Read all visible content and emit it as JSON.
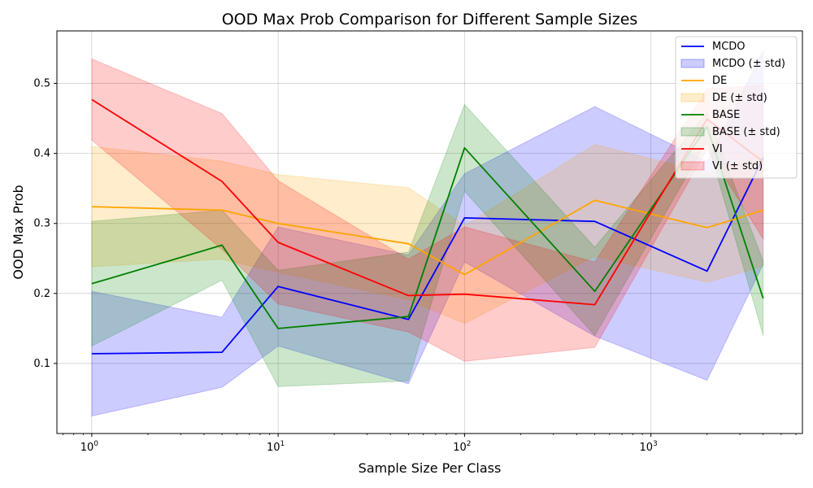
{
  "chart_data": {
    "type": "line",
    "title": "OOD Max Prob Comparison for Different Sample Sizes",
    "xlabel": "Sample Size Per Class",
    "ylabel": "OOD Max Prob",
    "xscale": "log",
    "xlim": [
      0.65,
      6500
    ],
    "ylim": [
      0.0,
      0.575
    ],
    "x": [
      1,
      5,
      10,
      50,
      100,
      500,
      2000,
      4000
    ],
    "x_ticks": [
      {
        "value": 1,
        "base": "10",
        "exp": "0"
      },
      {
        "value": 10,
        "base": "10",
        "exp": "1"
      },
      {
        "value": 100,
        "base": "10",
        "exp": "2"
      },
      {
        "value": 1000,
        "base": "10",
        "exp": "3"
      }
    ],
    "y_ticks": [
      0.1,
      0.2,
      0.3,
      0.4,
      0.5
    ],
    "y_tick_labels": [
      "0.1",
      "0.2",
      "0.3",
      "0.4",
      "0.5"
    ],
    "grid": true,
    "legend_position": "top-right",
    "series": [
      {
        "name": "MCDO",
        "band_name": "MCDO (± std)",
        "color": "#0000ff",
        "values": [
          0.114,
          0.116,
          0.21,
          0.163,
          0.308,
          0.303,
          0.232,
          0.394
        ],
        "std": [
          0.089,
          0.05,
          0.085,
          0.092,
          0.063,
          0.164,
          0.156,
          0.152
        ]
      },
      {
        "name": "DE",
        "band_name": "DE (± std)",
        "color": "#ffa500",
        "values": [
          0.324,
          0.319,
          0.3,
          0.271,
          0.227,
          0.333,
          0.294,
          0.319
        ],
        "std": [
          0.086,
          0.07,
          0.07,
          0.08,
          0.07,
          0.08,
          0.078,
          0.08
        ]
      },
      {
        "name": "BASE",
        "band_name": "BASE (± std)",
        "color": "#008000",
        "values": [
          0.214,
          0.269,
          0.15,
          0.167,
          0.408,
          0.203,
          0.438,
          0.193
        ],
        "std": [
          0.089,
          0.05,
          0.083,
          0.092,
          0.062,
          0.063,
          0.02,
          0.053
        ]
      },
      {
        "name": "VI",
        "band_name": "VI (± std)",
        "color": "#ff0000",
        "values": [
          0.477,
          0.36,
          0.273,
          0.197,
          0.199,
          0.184,
          0.449,
          0.388
        ],
        "std": [
          0.058,
          0.097,
          0.088,
          0.052,
          0.096,
          0.061,
          0.043,
          0.11
        ]
      }
    ]
  }
}
